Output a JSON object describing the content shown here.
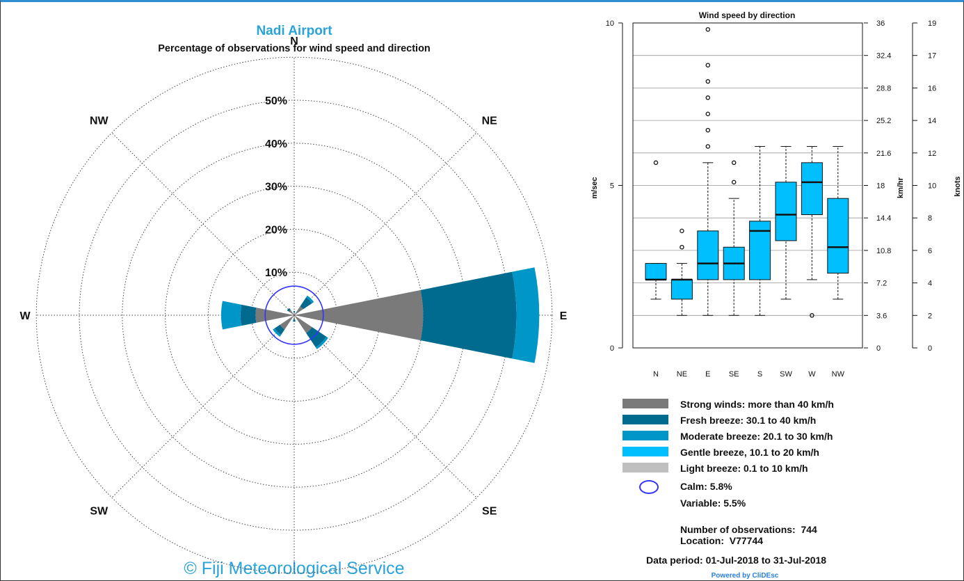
{
  "rose": {
    "title": "Nadi Airport",
    "subtitle": "Percentage of observations for wind speed and direction",
    "footer": "© Fiji Meteorological Service",
    "directions": [
      "N",
      "NE",
      "E",
      "SE",
      "S",
      "SW",
      "W",
      "NW"
    ],
    "ring_labels": [
      "10%",
      "20%",
      "30%",
      "40%",
      "50%"
    ],
    "ring_values": [
      10,
      20,
      30,
      40,
      50
    ]
  },
  "box": {
    "title": "Wind speed by direction",
    "y_label_ms": "m/sec",
    "y_label_kmh": "km/hr",
    "y_label_knots": "knots",
    "ms_ticks": [
      "0",
      "5",
      "10"
    ],
    "kmh_ticks": [
      "0",
      "3.6",
      "7.2",
      "10.8",
      "14.4",
      "18",
      "21.6",
      "25.2",
      "28.8",
      "32.4",
      "36"
    ],
    "knots_ticks": [
      "0",
      "2",
      "4",
      "6",
      "8",
      "10",
      "12",
      "14",
      "16",
      "17",
      "19"
    ]
  },
  "legend": {
    "items": [
      {
        "label": "Strong winds: more than 40 km/h",
        "color": "#7a7a7a"
      },
      {
        "label": "Fresh breeze: 30.1 to 40 km/h",
        "color": "#006b8f"
      },
      {
        "label": "Moderate breeze: 20.1 to 30 km/h",
        "color": "#0096c7"
      },
      {
        "label": "Gentle breeze, 10.1 to 20 km/h",
        "color": "#00bfff"
      },
      {
        "label": "Light breeze: 0.1 to 10 km/h",
        "color": "#bfbfbf"
      }
    ],
    "calm": "Calm: 5.8%",
    "calm_color": "#3333ff",
    "variable": "Variable: 5.5%",
    "observations": "Number of observations:  744",
    "location": "Location:  V77744",
    "period": "Data period: 01-Jul-2018 to 31-Jul-2018",
    "powered": "Powered by CliDEsc"
  },
  "chart_data": [
    {
      "type": "wind-rose",
      "title": "Nadi Airport",
      "subtitle": "Percentage of observations for wind speed and direction",
      "r_max": 50,
      "calm_percent": 5.8,
      "variable_percent": 5.5,
      "sectors": [
        {
          "direction": "N",
          "bands": [
            0.5,
            0.5,
            0,
            0,
            0
          ]
        },
        {
          "direction": "NE",
          "bands": [
            2.5,
            2.5,
            0.5,
            0,
            0
          ]
        },
        {
          "direction": "E",
          "bands": [
            30,
            21.7,
            5.3,
            0,
            0
          ]
        },
        {
          "direction": "SE",
          "bands": [
            5,
            4,
            0.5,
            0,
            0
          ]
        },
        {
          "direction": "S",
          "bands": [
            1,
            0.5,
            0,
            0,
            0
          ]
        },
        {
          "direction": "SW",
          "bands": [
            4,
            1.5,
            0.5,
            0,
            0
          ]
        },
        {
          "direction": "W",
          "bands": [
            9,
            3.5,
            4.5,
            0,
            0
          ]
        },
        {
          "direction": "NW",
          "bands": [
            1.5,
            0.5,
            0,
            0,
            0
          ]
        }
      ],
      "band_names": [
        "Light breeze: 0.1 to 10 km/h",
        "Gentle breeze, 10.1 to 20 km/h",
        "Moderate breeze: 20.1 to 30 km/h",
        "Fresh breeze: 30.1 to 40 km/h",
        "Strong winds: more than 40 km/h"
      ]
    },
    {
      "type": "box",
      "title": "Wind speed by direction",
      "ylabel": "m/sec",
      "ylim": [
        0,
        10
      ],
      "categories": [
        "N",
        "NE",
        "E",
        "SE",
        "S",
        "SW",
        "W",
        "NW"
      ],
      "boxes": [
        {
          "cat": "N",
          "low": 1.5,
          "q1": 2.1,
          "median": 2.1,
          "q3": 2.6,
          "high": 2.6,
          "outliers": [
            5.7
          ]
        },
        {
          "cat": "NE",
          "low": 1.0,
          "q1": 1.5,
          "median": 2.1,
          "q3": 2.1,
          "high": 2.6,
          "outliers": [
            3.1,
            3.6
          ]
        },
        {
          "cat": "E",
          "low": 1.0,
          "q1": 2.1,
          "median": 2.6,
          "q3": 3.6,
          "high": 5.7,
          "outliers": [
            6.2,
            6.7,
            7.2,
            7.7,
            8.2,
            8.7,
            9.8
          ]
        },
        {
          "cat": "SE",
          "low": 1.0,
          "q1": 2.1,
          "median": 2.6,
          "q3": 3.1,
          "high": 4.6,
          "outliers": [
            5.1,
            5.7
          ]
        },
        {
          "cat": "S",
          "low": 1.0,
          "q1": 2.1,
          "median": 3.6,
          "q3": 3.9,
          "high": 6.2,
          "outliers": []
        },
        {
          "cat": "SW",
          "low": 1.5,
          "q1": 3.3,
          "median": 4.1,
          "q3": 5.1,
          "high": 6.2,
          "outliers": []
        },
        {
          "cat": "W",
          "low": 2.1,
          "q1": 4.1,
          "median": 5.1,
          "q3": 5.7,
          "high": 6.2,
          "outliers": [
            1.0
          ]
        },
        {
          "cat": "NW",
          "low": 1.5,
          "q1": 2.3,
          "median": 3.1,
          "q3": 4.6,
          "high": 6.2,
          "outliers": []
        }
      ]
    }
  ]
}
